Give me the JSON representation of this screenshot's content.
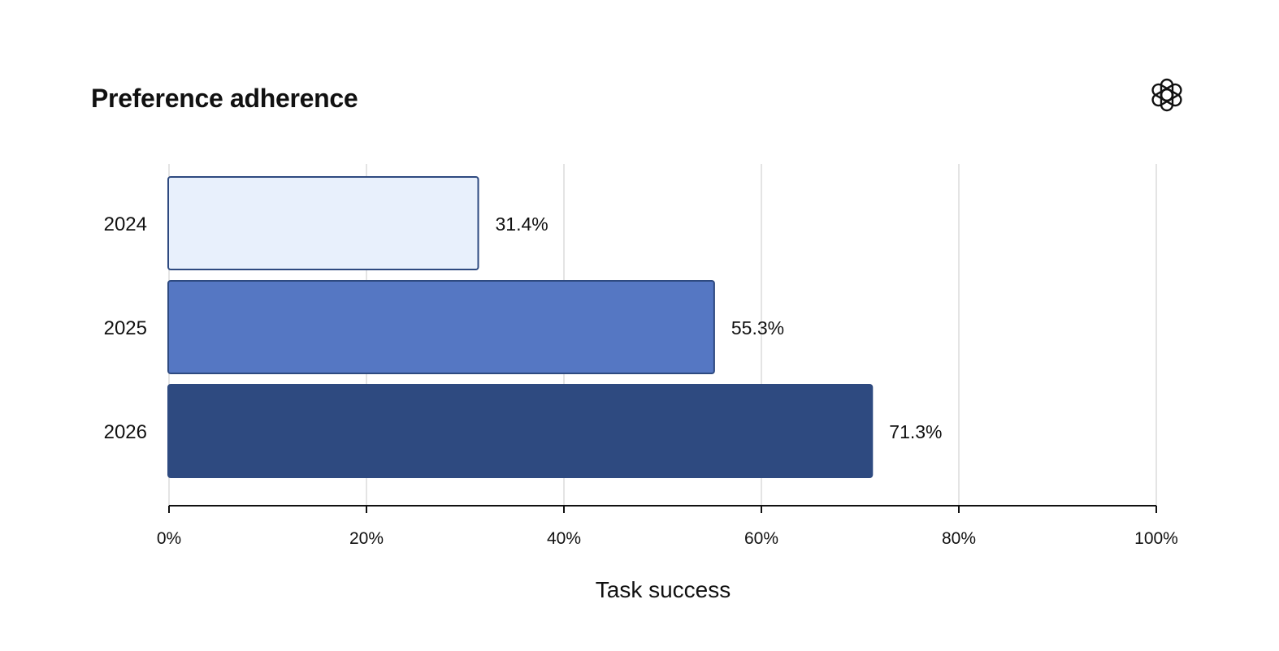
{
  "chart_data": {
    "type": "bar",
    "orientation": "horizontal",
    "title": "Preference adherence",
    "xlabel": "Task success",
    "ylabel": "",
    "categories": [
      "2024",
      "2025",
      "2026"
    ],
    "values": [
      31.4,
      55.3,
      71.3
    ],
    "value_labels": [
      "31.4%",
      "55.3%",
      "71.3%"
    ],
    "bar_colors": [
      "#e8f0fc",
      "#5577c3",
      "#2e4a80"
    ],
    "bar_outline_color": "#2e4a80",
    "xlim": [
      0,
      100
    ],
    "xticks": [
      0,
      20,
      40,
      60,
      80,
      100
    ],
    "xtick_labels": [
      "0%",
      "20%",
      "40%",
      "60%",
      "80%",
      "100%"
    ],
    "grid": "vertical",
    "legend": "none"
  },
  "logo": {
    "icon": "openai-logo-icon"
  }
}
